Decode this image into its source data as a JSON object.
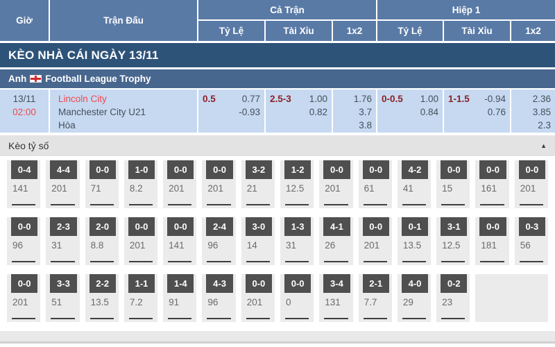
{
  "header": {
    "col_time": "Giờ",
    "col_match": "Trận Đấu",
    "group_full": "Cả Trận",
    "group_half": "Hiệp 1",
    "sub_handicap": "Tỷ Lệ",
    "sub_overunder": "Tài Xỉu",
    "sub_1x2": "1x2"
  },
  "banner": {
    "title": "KÈO NHÀ CÁI NGÀY 13/11"
  },
  "league": {
    "country": "Anh",
    "flag_icon": "england-flag",
    "name": "Football League Trophy"
  },
  "match": {
    "date": "13/11",
    "time": "02:00",
    "home": "Lincoln City",
    "away": "Manchester City U21",
    "draw_label": "Hòa",
    "full": {
      "handicap": {
        "line": "0.5",
        "home": "0.77",
        "away": "-0.93"
      },
      "overunder": {
        "line": "2.5-3",
        "over": "1.00",
        "under": "0.82"
      },
      "oneXtwo": {
        "home": "1.76",
        "draw": "3.7",
        "away": "3.8"
      }
    },
    "half": {
      "handicap": {
        "line": "0-0.5",
        "home": "1.00",
        "away": "0.84"
      },
      "overunder": {
        "line": "1-1.5",
        "over": "-0.94",
        "under": "0.76"
      },
      "oneXtwo": {
        "home": "2.36",
        "draw": "3.85",
        "away": "2.3"
      }
    }
  },
  "score_section": {
    "title": "Kèo tỷ số",
    "collapse_icon": "▲",
    "rows": [
      [
        {
          "score": "0-4",
          "odds": "141"
        },
        {
          "score": "4-4",
          "odds": "201"
        },
        {
          "score": "0-0",
          "odds": "71"
        },
        {
          "score": "1-0",
          "odds": "8.2"
        },
        {
          "score": "0-0",
          "odds": "201"
        },
        {
          "score": "0-0",
          "odds": "201"
        },
        {
          "score": "3-2",
          "odds": "21"
        },
        {
          "score": "1-2",
          "odds": "12.5"
        },
        {
          "score": "0-0",
          "odds": "201"
        },
        {
          "score": "0-0",
          "odds": "61"
        },
        {
          "score": "4-2",
          "odds": "41"
        },
        {
          "score": "0-0",
          "odds": "15"
        },
        {
          "score": "0-0",
          "odds": "161"
        },
        {
          "score": "0-0",
          "odds": "201"
        }
      ],
      [
        {
          "score": "0-0",
          "odds": "96"
        },
        {
          "score": "2-3",
          "odds": "31"
        },
        {
          "score": "2-0",
          "odds": "8.8"
        },
        {
          "score": "0-0",
          "odds": "201"
        },
        {
          "score": "0-0",
          "odds": "141"
        },
        {
          "score": "2-4",
          "odds": "96"
        },
        {
          "score": "3-0",
          "odds": "14"
        },
        {
          "score": "1-3",
          "odds": "31"
        },
        {
          "score": "4-1",
          "odds": "26"
        },
        {
          "score": "0-0",
          "odds": "201"
        },
        {
          "score": "0-1",
          "odds": "13.5"
        },
        {
          "score": "3-1",
          "odds": "12.5"
        },
        {
          "score": "0-0",
          "odds": "181"
        },
        {
          "score": "0-3",
          "odds": "56"
        }
      ],
      [
        {
          "score": "0-0",
          "odds": "201"
        },
        {
          "score": "3-3",
          "odds": "51"
        },
        {
          "score": "2-2",
          "odds": "13.5"
        },
        {
          "score": "1-1",
          "odds": "7.2"
        },
        {
          "score": "1-4",
          "odds": "91"
        },
        {
          "score": "4-3",
          "odds": "96"
        },
        {
          "score": "0-0",
          "odds": "201"
        },
        {
          "score": "0-0",
          "odds": "0"
        },
        {
          "score": "3-4",
          "odds": "131"
        },
        {
          "score": "2-1",
          "odds": "7.7"
        },
        {
          "score": "4-0",
          "odds": "29"
        },
        {
          "score": "0-2",
          "odds": "23"
        }
      ]
    ]
  },
  "colors": {
    "header_blue": "#5a7aa6",
    "banner_blue": "#2e5379",
    "league_blue": "#48678f",
    "row_lightblue": "#c6d9f1",
    "accent_red": "#f0484e",
    "handicap_maroon": "#8d2024",
    "scorebox_gray": "#4f4f4f"
  }
}
